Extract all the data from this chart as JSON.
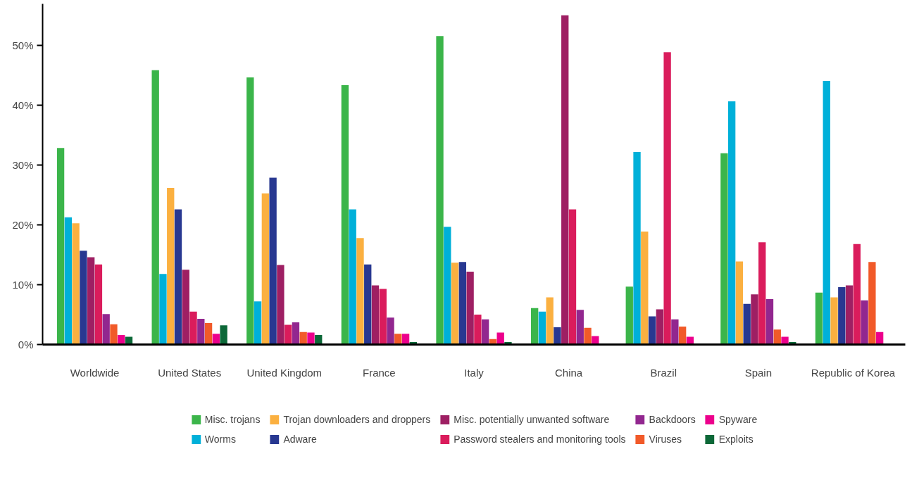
{
  "chart_data": {
    "type": "bar",
    "categories": [
      "Worldwide",
      "United States",
      "United Kingdom",
      "France",
      "Italy",
      "China",
      "Brazil",
      "Spain",
      "Republic of Korea"
    ],
    "series": [
      {
        "name": "Misc. trojans",
        "color": "#3bb54a",
        "values": [
          32.9,
          45.9,
          44.7,
          43.4,
          51.6,
          6.1,
          9.7,
          32.0,
          8.7
        ]
      },
      {
        "name": "Worms",
        "color": "#00b0d9",
        "values": [
          21.3,
          11.8,
          7.2,
          22.6,
          19.7,
          5.5,
          32.2,
          40.7,
          44.1
        ]
      },
      {
        "name": "Trojan downloaders and droppers",
        "color": "#fbb040",
        "values": [
          20.3,
          26.2,
          25.3,
          17.8,
          13.7,
          7.9,
          18.9,
          13.9,
          7.9
        ]
      },
      {
        "name": "Adware",
        "color": "#283891",
        "values": [
          15.7,
          22.6,
          27.9,
          13.4,
          13.8,
          2.9,
          4.7,
          6.8,
          9.6
        ]
      },
      {
        "name": "Misc. potentially unwanted software",
        "color": "#9e1f63",
        "values": [
          14.6,
          12.5,
          13.3,
          9.9,
          12.2,
          55.1,
          5.9,
          8.4,
          9.9
        ]
      },
      {
        "name": "Password stealers and monitoring tools",
        "color": "#da1c5c",
        "values": [
          13.4,
          5.5,
          3.3,
          9.3,
          5.0,
          22.6,
          48.9,
          17.1,
          16.8
        ]
      },
      {
        "name": "Backdoors",
        "color": "#92278f",
        "values": [
          5.1,
          4.3,
          3.7,
          4.5,
          4.2,
          5.8,
          4.2,
          7.6,
          7.4
        ]
      },
      {
        "name": "Viruses",
        "color": "#f15a29",
        "values": [
          3.4,
          3.6,
          2.1,
          1.8,
          0.9,
          2.8,
          3.0,
          2.5,
          13.8
        ]
      },
      {
        "name": "Spyware",
        "color": "#ec008c",
        "values": [
          1.6,
          1.8,
          2.0,
          1.8,
          2.0,
          1.4,
          1.3,
          1.3,
          2.1
        ]
      },
      {
        "name": "Exploits",
        "color": "#0c6838",
        "values": [
          1.3,
          3.2,
          1.6,
          0.4,
          0.4,
          0.1,
          null,
          0.4,
          null
        ]
      }
    ],
    "ylim": [
      0,
      57
    ],
    "yticks": [
      {
        "value": 0,
        "label": "0%"
      },
      {
        "value": 10,
        "label": "10%"
      },
      {
        "value": 20,
        "label": "20%"
      },
      {
        "value": 30,
        "label": "30%"
      },
      {
        "value": 40,
        "label": "40%"
      },
      {
        "value": 50,
        "label": "50%"
      }
    ],
    "grid": false,
    "legend": "bottom"
  }
}
